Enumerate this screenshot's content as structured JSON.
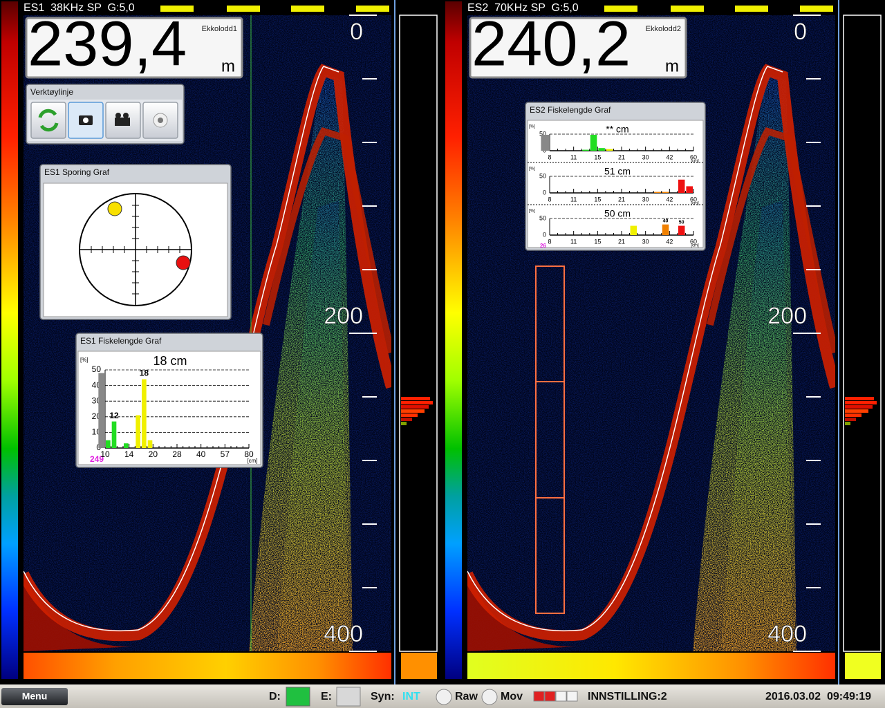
{
  "panels": [
    {
      "header": "ES1  38KHz SP  G:5,0",
      "depth": "239,4",
      "device": "Ekkolodd1",
      "unit": "m",
      "depth_axis": {
        "ylim": [
          0,
          400
        ],
        "ticks": [
          0,
          40,
          80,
          120,
          160,
          200,
          240,
          280,
          320,
          360,
          400
        ],
        "labels": [
          0,
          200,
          400
        ]
      }
    },
    {
      "header": "ES2  70KHz SP  G:5,0",
      "depth": "240,2",
      "device": "Ekkolodd2",
      "unit": "m",
      "depth_axis": {
        "ylim": [
          0,
          400
        ],
        "ticks": [
          0,
          40,
          80,
          120,
          160,
          200,
          240,
          280,
          320,
          360,
          400
        ],
        "labels": [
          0,
          200,
          400
        ]
      }
    }
  ],
  "toolbar": {
    "title": "Verktøylinje"
  },
  "tracking": {
    "title": "ES1 Sporing Graf"
  },
  "es1_length": {
    "title": "ES1 Fiskelengde Graf",
    "charts": [
      {
        "label": "18 cm",
        "ylabel": "[%]",
        "xunit": "[cm]",
        "count": 249,
        "ylim": [
          0,
          50
        ],
        "yticks": [
          0,
          10,
          20,
          30,
          40,
          50
        ],
        "x_labels": [
          10,
          null,
          null,
          null,
          14,
          null,
          null,
          null,
          20,
          null,
          null,
          null,
          28,
          null,
          null,
          null,
          40,
          null,
          null,
          null,
          57,
          null,
          null,
          null,
          80
        ],
        "total": 48,
        "bars": [
          {
            "x": 0,
            "value": 5,
            "color": "#22dd22"
          },
          {
            "x": 1,
            "value": 17,
            "color": "#22dd22"
          },
          {
            "x": 3,
            "value": 3,
            "color": "#22dd22"
          },
          {
            "x": 5,
            "value": 21,
            "color": "#f0f000"
          },
          {
            "x": 6,
            "value": 44,
            "color": "#f0f000"
          },
          {
            "x": 7,
            "value": 5,
            "color": "#f0f000"
          }
        ],
        "annotations": [
          {
            "x": 1,
            "text": 12
          },
          {
            "x": 6,
            "text": 18
          }
        ]
      }
    ]
  },
  "es2_length": {
    "title": "ES2 Fiskelengde Graf",
    "charts": [
      {
        "label": "** cm",
        "ylabel": "[%]",
        "xunit": "[cm]",
        "ylim": [
          0,
          50
        ],
        "yticks": [
          0,
          50
        ],
        "x_labels": [
          8,
          null,
          null,
          11,
          null,
          null,
          15,
          null,
          null,
          21,
          null,
          null,
          30,
          null,
          null,
          42,
          null,
          null,
          60
        ],
        "total": 48,
        "bars": [
          {
            "x": 4,
            "value": 3,
            "color": "#22dd22"
          },
          {
            "x": 5,
            "value": 48,
            "color": "#22dd22"
          },
          {
            "x": 6,
            "value": 8,
            "color": "#22dd22"
          },
          {
            "x": 7,
            "value": 5,
            "color": "#f0f000"
          }
        ]
      },
      {
        "label": "51 cm",
        "ylabel": "[%]",
        "xunit": "[cm]",
        "ylim": [
          0,
          50
        ],
        "yticks": [
          0,
          50
        ],
        "x_labels": [
          8,
          null,
          null,
          11,
          null,
          null,
          15,
          null,
          null,
          21,
          null,
          null,
          30,
          null,
          null,
          42,
          null,
          null,
          60
        ],
        "bars": [
          {
            "x": 13,
            "value": 3,
            "color": "#f08000"
          },
          {
            "x": 14,
            "value": 3,
            "color": "#f08000"
          },
          {
            "x": 16,
            "value": 40,
            "color": "#ee1111"
          },
          {
            "x": 17,
            "value": 20,
            "color": "#ee1111"
          }
        ]
      },
      {
        "label": "50 cm",
        "ylabel": "[%]",
        "xunit": "[cm]",
        "count": 26,
        "ylim": [
          0,
          50
        ],
        "yticks": [
          0,
          50
        ],
        "x_labels": [
          8,
          null,
          null,
          11,
          null,
          null,
          15,
          null,
          null,
          21,
          null,
          null,
          30,
          null,
          null,
          42,
          null,
          null,
          60
        ],
        "bars": [
          {
            "x": 10,
            "value": 28,
            "color": "#f0f000"
          },
          {
            "x": 14,
            "value": 32,
            "color": "#f08000"
          },
          {
            "x": 16,
            "value": 28,
            "color": "#ee1111"
          }
        ],
        "annotations": [
          {
            "x": 14,
            "text": 40
          },
          {
            "x": 16,
            "text": 50
          }
        ]
      }
    ]
  },
  "status": {
    "menu": "Menu",
    "d": "D:",
    "e": "E:",
    "syn": "Syn:",
    "syn_value": "INT",
    "raw": "Raw",
    "mov": "Mov",
    "setting": "INNSTILLING:2",
    "datetime": "2016.03.02  09:49:19"
  }
}
